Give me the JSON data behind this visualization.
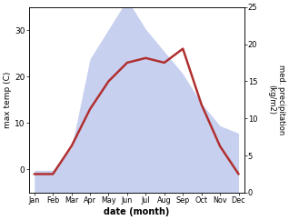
{
  "months": [
    "Jan",
    "Feb",
    "Mar",
    "Apr",
    "May",
    "Jun",
    "Jul",
    "Aug",
    "Sep",
    "Oct",
    "Nov",
    "Dec"
  ],
  "temperature": [
    -1,
    -1,
    5,
    13,
    19,
    23,
    24,
    23,
    26,
    14,
    5,
    -1
  ],
  "precipitation": [
    3,
    3,
    6,
    18,
    22,
    26,
    22,
    19,
    16,
    12,
    9,
    8
  ],
  "temp_color": "#b03030",
  "precip_fill_color": "#c8d0f0",
  "precip_edge_color": "#c8d0f0",
  "xlabel": "date (month)",
  "ylabel_left": "max temp (C)",
  "ylabel_right": "med. precipitation\n(kg/m2)",
  "ylim_left": [
    -5,
    35
  ],
  "ylim_right": [
    0,
    25
  ],
  "yticks_left": [
    0,
    10,
    20,
    30
  ],
  "yticks_right": [
    0,
    5,
    10,
    15,
    20,
    25
  ],
  "background_color": "#ffffff"
}
